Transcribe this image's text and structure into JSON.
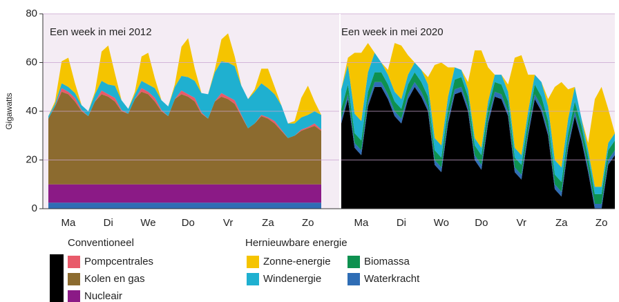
{
  "chart_data": [
    {
      "type": "stacked_area",
      "subtitle": "Een week in mei 2012",
      "ylabel": "Gigawatts",
      "ylim": [
        0,
        80
      ],
      "yticks": [
        0,
        20,
        40,
        60,
        80
      ],
      "grid": true,
      "categories": [
        null,
        null,
        null,
        "Ma",
        null,
        null,
        null,
        null,
        null,
        "Di",
        null,
        null,
        null,
        null,
        null,
        "We",
        null,
        null,
        null,
        null,
        null,
        "Do",
        null,
        null,
        null,
        null,
        null,
        "Vr",
        null,
        null,
        null,
        null,
        null,
        "Za",
        null,
        null,
        null,
        null,
        null,
        "Zo",
        null,
        null
      ],
      "series": [
        {
          "name": "Waterkracht",
          "color": "#2f6db5",
          "values": [
            2.5,
            2.5,
            2.5,
            2.5,
            2.5,
            2.5,
            2.5,
            2.5,
            2.5,
            2.5,
            2.5,
            2.5,
            2.5,
            2.5,
            2.5,
            2.5,
            2.5,
            2.5,
            2.5,
            2.5,
            2.5,
            2.5,
            2.5,
            2.5,
            2.5,
            2.5,
            2.5,
            2.5,
            2.5,
            2.5,
            2.5,
            2.5,
            2.5,
            2.5,
            2.5,
            2.5,
            2.5,
            2.5,
            2.5,
            2.5,
            2.5,
            2.5
          ]
        },
        {
          "name": "Nucleair",
          "color": "#8b1a86",
          "values": [
            7.5,
            7.5,
            7.5,
            7.5,
            7.5,
            7.5,
            7.5,
            7.5,
            7.5,
            7.5,
            7.5,
            7.5,
            7.5,
            7.5,
            7.5,
            7.5,
            7.5,
            7.5,
            7.5,
            7.5,
            7.5,
            7.5,
            7.5,
            7.5,
            7.5,
            7.5,
            7.5,
            7.5,
            7.5,
            7.5,
            7.5,
            7.5,
            7.5,
            7.5,
            7.5,
            7.5,
            7.5,
            7.5,
            7.5,
            7.5,
            7.5,
            7.5
          ]
        },
        {
          "name": "Kolen en gas",
          "color": "#8c6b2f",
          "values": [
            27,
            32,
            38,
            37,
            34,
            30,
            28,
            34,
            37,
            36,
            34,
            30,
            29,
            35,
            38,
            37,
            34,
            30,
            28,
            35,
            37,
            36,
            34,
            29,
            27,
            34,
            36,
            35,
            33,
            28,
            23,
            25,
            28,
            27,
            25,
            22,
            19,
            20,
            22,
            23,
            24,
            22
          ]
        },
        {
          "name": "Pompcentrales",
          "color": "#e85a6a",
          "values": [
            0,
            0,
            1.5,
            1,
            1.5,
            0.5,
            0,
            0,
            1.5,
            1,
            1.5,
            0.5,
            0,
            0,
            1.5,
            1,
            1.5,
            0.5,
            0,
            0,
            1.5,
            1,
            1.5,
            0.5,
            0,
            0,
            1.5,
            1,
            1.5,
            0.5,
            0,
            0,
            0.5,
            0.5,
            1,
            0.5,
            0,
            0,
            0.5,
            0.5,
            1,
            0.5
          ]
        },
        {
          "name": "Windenergie",
          "color": "#1fb0d0",
          "values": [
            1,
            1,
            2,
            2,
            2,
            2,
            2,
            3,
            4,
            4,
            5,
            4,
            2,
            2,
            3,
            3,
            4,
            4,
            4,
            5,
            6,
            7,
            7,
            8,
            10,
            12,
            13,
            14,
            14,
            12,
            12,
            13,
            13,
            12,
            11,
            10,
            6,
            5,
            5,
            5,
            5,
            6
          ]
        },
        {
          "name": "Zonne-energie",
          "color": "#f5c400",
          "values": [
            0,
            1,
            9,
            12,
            4,
            0,
            0,
            1,
            12,
            16,
            5,
            0,
            0,
            1,
            10,
            13,
            4,
            0,
            0,
            1,
            12,
            16,
            5,
            0,
            0,
            1,
            9,
            12,
            4,
            0,
            0,
            1,
            6,
            8,
            3,
            0,
            0,
            1,
            8,
            12,
            4,
            0
          ]
        }
      ]
    },
    {
      "type": "stacked_area",
      "subtitle": "Een week in mei 2020",
      "ylim": [
        0,
        80
      ],
      "yticks": [
        0,
        20,
        40,
        60,
        80
      ],
      "grid": true,
      "categories": [
        null,
        null,
        null,
        "Ma",
        null,
        null,
        null,
        null,
        null,
        "Di",
        null,
        null,
        null,
        null,
        null,
        "Wo",
        null,
        null,
        null,
        null,
        null,
        "Do",
        null,
        null,
        null,
        null,
        null,
        "Vr",
        null,
        null,
        null,
        null,
        null,
        "Za",
        null,
        null,
        null,
        null,
        null,
        "Zo",
        null,
        null
      ],
      "series": [
        {
          "name": "Conventioneel",
          "color": "#000000",
          "values": [
            35,
            45,
            25,
            22,
            42,
            50,
            50,
            45,
            38,
            35,
            45,
            50,
            46,
            40,
            18,
            15,
            35,
            47,
            48,
            40,
            20,
            16,
            35,
            46,
            45,
            38,
            15,
            12,
            30,
            45,
            40,
            30,
            8,
            5,
            25,
            38,
            28,
            15,
            0,
            0,
            18,
            22
          ]
        },
        {
          "name": "Waterkracht",
          "color": "#2f6db5",
          "values": [
            2,
            2,
            2,
            2,
            2,
            2,
            2,
            2,
            2,
            2,
            2,
            2,
            2,
            2,
            2,
            2,
            2,
            2,
            2,
            2,
            2,
            2,
            2,
            2,
            2,
            2,
            2,
            2,
            2,
            2,
            2,
            2,
            2,
            2,
            2,
            2,
            2,
            2,
            2,
            2,
            2,
            2
          ]
        },
        {
          "name": "Biomassa",
          "color": "#0e9150",
          "values": [
            4,
            4,
            4,
            4,
            4,
            4,
            4,
            4,
            4,
            4,
            4,
            4,
            4,
            4,
            4,
            4,
            4,
            4,
            4,
            4,
            4,
            4,
            4,
            4,
            4,
            4,
            4,
            4,
            4,
            4,
            4,
            4,
            4,
            4,
            4,
            4,
            4,
            4,
            4,
            4,
            4,
            4
          ]
        },
        {
          "name": "Windenergie",
          "color": "#1fb0d0",
          "values": [
            8,
            8,
            8,
            8,
            8,
            8,
            4,
            4,
            4,
            4,
            4,
            4,
            5,
            5,
            5,
            5,
            5,
            5,
            3,
            3,
            3,
            3,
            3,
            3,
            4,
            4,
            4,
            4,
            4,
            4,
            6,
            6,
            6,
            6,
            6,
            6,
            3,
            3,
            3,
            3,
            3,
            3
          ]
        },
        {
          "name": "Zonne-energie",
          "color": "#f5c400",
          "values": [
            0,
            3,
            25,
            28,
            12,
            0,
            0,
            2,
            20,
            22,
            8,
            0,
            0,
            3,
            30,
            34,
            12,
            0,
            0,
            3,
            36,
            40,
            14,
            0,
            0,
            3,
            37,
            41,
            15,
            0,
            0,
            3,
            30,
            35,
            12,
            0,
            0,
            3,
            36,
            41,
            14,
            0
          ]
        }
      ]
    }
  ],
  "legend": [
    {
      "title": "Conventioneel",
      "color": "#000000",
      "items": [
        {
          "name": "Pompcentrales",
          "color": "#e85a6a"
        },
        {
          "name": "Kolen en gas",
          "color": "#8c6b2f"
        },
        {
          "name": "Nucleair",
          "color": "#8b1a86"
        }
      ]
    },
    {
      "title": "Hernieuwbare energie",
      "items": [
        {
          "name": "Zonne-energie",
          "color": "#f5c400"
        },
        {
          "name": "Biomassa",
          "color": "#0e9150"
        },
        {
          "name": "Windenergie",
          "color": "#1fb0d0"
        },
        {
          "name": "Waterkracht",
          "color": "#2f6db5"
        }
      ]
    }
  ]
}
